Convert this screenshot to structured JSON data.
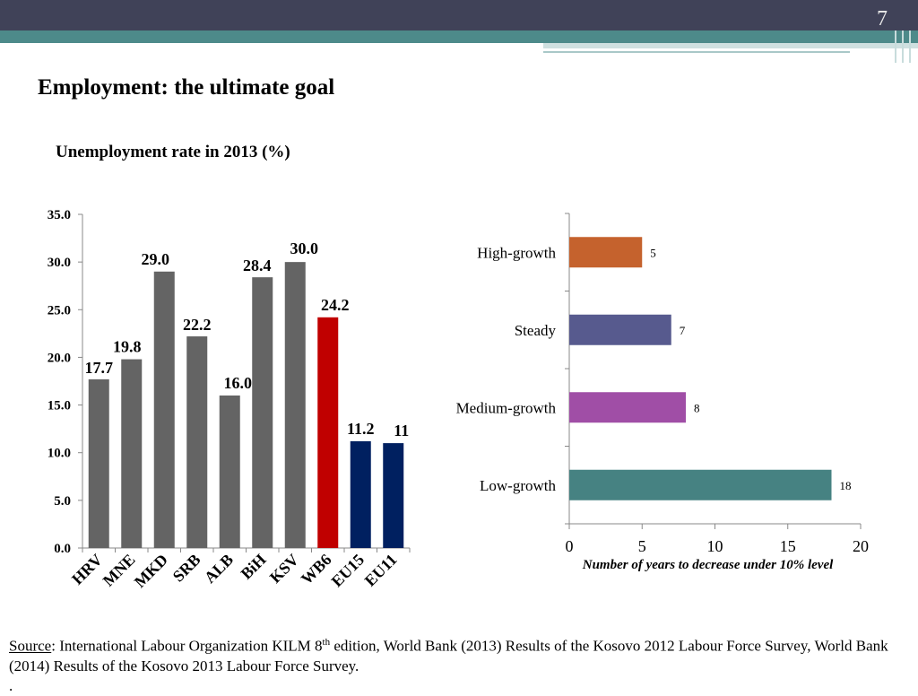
{
  "slide": {
    "number": "7",
    "title": "Employment: the ultimate goal",
    "subtitle": "Unemployment rate in 2013 (%)"
  },
  "source": {
    "label": "Source",
    "text1": ": International Labour Organization KILM 8",
    "sup": "th",
    "text2": " edition, World Bank (2013) Results of the Kosovo 2012 Labour Force Survey, World Bank (2014) Results of the Kosovo 2013 Labour Force Survey.",
    "text3": "."
  },
  "chart_data": [
    {
      "type": "bar",
      "title": "Unemployment rate in 2013 (%)",
      "categories": [
        "HRV",
        "MNE",
        "MKD",
        "SRB",
        "ALB",
        "BiH",
        "KSV",
        "WB6",
        "EU15",
        "EU11"
      ],
      "values": [
        17.7,
        19.8,
        29.0,
        22.2,
        16.0,
        28.4,
        30.0,
        24.2,
        11.2,
        11.0
      ],
      "data_labels": [
        "17.7",
        "19.8",
        "29.0",
        "22.2",
        "16.0",
        "28.4",
        "30.0",
        "24.2",
        "11.2",
        "11"
      ],
      "colors": [
        "#646464",
        "#646464",
        "#646464",
        "#646464",
        "#646464",
        "#646464",
        "#646464",
        "#c00000",
        "#002060",
        "#002060"
      ],
      "ylim": [
        0,
        35
      ],
      "yticks": [
        "0.0",
        "5.0",
        "10.0",
        "15.0",
        "20.0",
        "25.0",
        "30.0",
        "35.0"
      ],
      "xlabel": "",
      "ylabel": ""
    },
    {
      "type": "bar",
      "orientation": "horizontal",
      "categories": [
        "High-growth",
        "Steady",
        "Medium-growth",
        "Low-growth"
      ],
      "values": [
        5,
        7,
        8,
        18
      ],
      "colors": [
        "#c5622d",
        "#575a8e",
        "#a04ea6",
        "#468282"
      ],
      "xlim": [
        0,
        20
      ],
      "xticks": [
        "0",
        "5",
        "10",
        "15",
        "20"
      ],
      "xlabel": "Number of years to decrease under 10% level",
      "ylabel": ""
    }
  ]
}
